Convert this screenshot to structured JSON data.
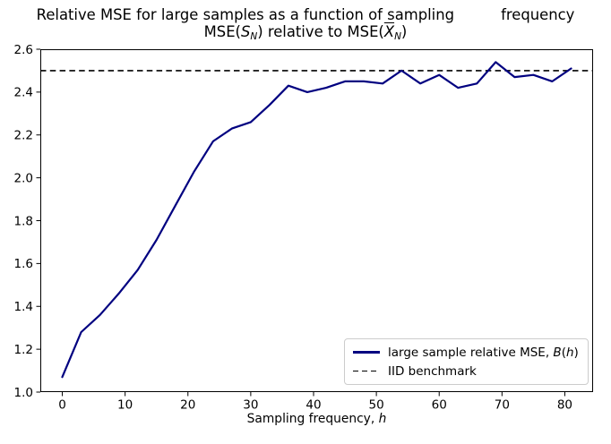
{
  "title": {
    "line1": "Relative MSE for large samples as a function of sampling          frequency",
    "line2": {
      "pre": "MSE(",
      "s_var": "S",
      "s_sub": "N",
      "mid": ") relative to MSE(",
      "x_var": "X",
      "x_sub": "N",
      "close": ")"
    }
  },
  "xlabel": {
    "pre": "Sampling frequency, ",
    "var": "h"
  },
  "legend": {
    "entry1": {
      "pre": "large sample relative MSE, ",
      "b_var": "B",
      "open": "(",
      "h_var": "h",
      "close": ")"
    },
    "entry2": {
      "label": "IID benchmark"
    }
  },
  "chart_data": {
    "type": "line",
    "title": "Relative MSE for large samples as a function of sampling frequency",
    "subtitle": "MSE(S_N) relative to MSE(X̄_N)",
    "xlabel": "Sampling frequency, h",
    "ylabel": "",
    "x": [
      0,
      3,
      6,
      9,
      12,
      15,
      18,
      21,
      24,
      27,
      30,
      33,
      36,
      39,
      42,
      45,
      48,
      51,
      54,
      57,
      60,
      63,
      66,
      69,
      72,
      75,
      78,
      81
    ],
    "series": [
      {
        "name": "large sample relative MSE, B(h)",
        "color": "#000080",
        "values": [
          1.07,
          1.28,
          1.36,
          1.46,
          1.57,
          1.71,
          1.87,
          2.03,
          2.17,
          2.23,
          2.26,
          2.34,
          2.43,
          2.4,
          2.42,
          2.45,
          2.45,
          2.44,
          2.5,
          2.44,
          2.48,
          2.42,
          2.44,
          2.54,
          2.47,
          2.48,
          2.45,
          2.51
        ]
      }
    ],
    "benchmark": {
      "label": "IID benchmark",
      "value": 2.5,
      "color": "#000000",
      "style": "dashed"
    },
    "xticks": {
      "values": [
        0,
        10,
        20,
        30,
        40,
        50,
        60,
        70,
        80
      ],
      "labels": [
        "0",
        "10",
        "20",
        "30",
        "40",
        "50",
        "60",
        "70",
        "80"
      ]
    },
    "yticks": {
      "values": [
        1.0,
        1.2,
        1.4,
        1.6,
        1.8,
        2.0,
        2.2,
        2.4,
        2.6
      ],
      "labels": [
        "1.0",
        "1.2",
        "1.4",
        "1.6",
        "1.8",
        "2.0",
        "2.2",
        "2.4",
        "2.6"
      ]
    },
    "xlim": [
      -3.5,
      84.5
    ],
    "ylim": [
      1.0,
      2.6
    ],
    "grid": false,
    "legend_position": "lower right"
  }
}
